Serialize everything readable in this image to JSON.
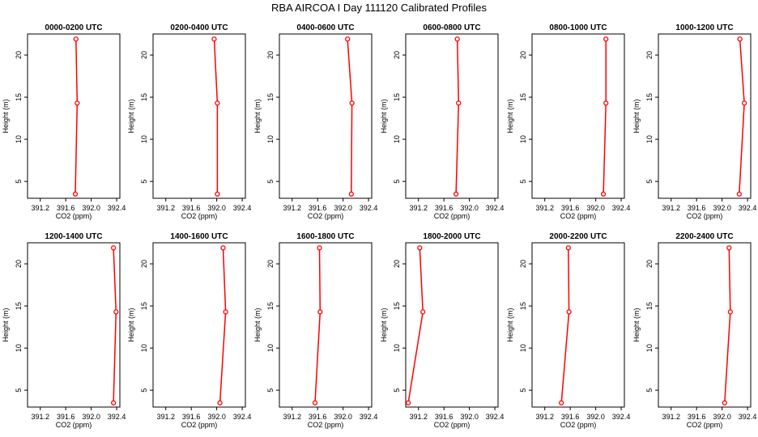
{
  "title": "RBA AIRCOA I  Day 111120  Calibrated Profiles",
  "colors": {
    "line": "#ff0000",
    "axis": "#000000",
    "background": "#ffffff"
  },
  "chart_data": [
    {
      "type": "line",
      "title": "0000-0200 UTC",
      "xlabel": "CO2 (ppm)",
      "ylabel": "Height (m)",
      "xlim": [
        391.0,
        392.45
      ],
      "ylim": [
        3,
        22.5
      ],
      "x_ticks": [
        "391.2",
        "391.6",
        "392.0",
        "392.4"
      ],
      "y_ticks": [
        "5",
        "10",
        "15",
        "20"
      ],
      "grid": false,
      "series": [
        {
          "x": [
            391.75,
            391.78,
            391.76
          ],
          "y": [
            3.5,
            14.3,
            21.9
          ]
        }
      ]
    },
    {
      "type": "line",
      "title": "0200-0400 UTC",
      "xlabel": "CO2 (ppm)",
      "ylabel": "Height (m)",
      "xlim": [
        391.0,
        392.45
      ],
      "ylim": [
        3,
        22.5
      ],
      "x_ticks": [
        "391.2",
        "391.6",
        "392.0",
        "392.4"
      ],
      "y_ticks": [
        "5",
        "10",
        "15",
        "20"
      ],
      "grid": false,
      "series": [
        {
          "x": [
            392.01,
            392.01,
            391.96
          ],
          "y": [
            3.5,
            14.3,
            21.9
          ]
        }
      ]
    },
    {
      "type": "line",
      "title": "0400-0600 UTC",
      "xlabel": "CO2 (ppm)",
      "ylabel": "Height (m)",
      "xlim": [
        391.0,
        392.45
      ],
      "ylim": [
        3,
        22.5
      ],
      "x_ticks": [
        "391.2",
        "391.6",
        "392.0",
        "392.4"
      ],
      "y_ticks": [
        "5",
        "10",
        "15",
        "20"
      ],
      "grid": false,
      "series": [
        {
          "x": [
            392.13,
            392.14,
            392.07
          ],
          "y": [
            3.5,
            14.3,
            21.9
          ]
        }
      ]
    },
    {
      "type": "line",
      "title": "0600-0800 UTC",
      "xlabel": "CO2 (ppm)",
      "ylabel": "Height (m)",
      "xlim": [
        391.0,
        392.45
      ],
      "ylim": [
        3,
        22.5
      ],
      "x_ticks": [
        "391.2",
        "391.6",
        "392.0",
        "392.4"
      ],
      "y_ticks": [
        "5",
        "10",
        "15",
        "20"
      ],
      "grid": false,
      "series": [
        {
          "x": [
            391.79,
            391.83,
            391.81
          ],
          "y": [
            3.5,
            14.3,
            21.9
          ]
        }
      ]
    },
    {
      "type": "line",
      "title": "0800-1000 UTC",
      "xlabel": "CO2 (ppm)",
      "ylabel": "Height (m)",
      "xlim": [
        391.0,
        392.45
      ],
      "ylim": [
        3,
        22.5
      ],
      "x_ticks": [
        "391.2",
        "391.6",
        "392.0",
        "392.4"
      ],
      "y_ticks": [
        "5",
        "10",
        "15",
        "20"
      ],
      "grid": false,
      "series": [
        {
          "x": [
            392.12,
            392.16,
            392.16
          ],
          "y": [
            3.5,
            14.3,
            21.9
          ]
        }
      ]
    },
    {
      "type": "line",
      "title": "1000-1200 UTC",
      "xlabel": "CO2 (ppm)",
      "ylabel": "Height (m)",
      "xlim": [
        391.0,
        392.45
      ],
      "ylim": [
        3,
        22.5
      ],
      "x_ticks": [
        "391.2",
        "391.6",
        "392.0",
        "392.4"
      ],
      "y_ticks": [
        "5",
        "10",
        "15",
        "20"
      ],
      "grid": false,
      "series": [
        {
          "x": [
            392.27,
            392.35,
            392.28
          ],
          "y": [
            3.5,
            14.3,
            21.9
          ]
        }
      ]
    },
    {
      "type": "line",
      "title": "1200-1400 UTC",
      "xlabel": "CO2 (ppm)",
      "ylabel": "Height (m)",
      "xlim": [
        391.0,
        392.45
      ],
      "ylim": [
        3,
        22.5
      ],
      "x_ticks": [
        "391.2",
        "391.6",
        "392.0",
        "392.4"
      ],
      "y_ticks": [
        "5",
        "10",
        "15",
        "20"
      ],
      "grid": false,
      "series": [
        {
          "x": [
            392.35,
            392.39,
            392.35
          ],
          "y": [
            3.5,
            14.3,
            21.9
          ]
        }
      ]
    },
    {
      "type": "line",
      "title": "1400-1600 UTC",
      "xlabel": "CO2 (ppm)",
      "ylabel": "Height (m)",
      "xlim": [
        391.0,
        392.45
      ],
      "ylim": [
        3,
        22.5
      ],
      "x_ticks": [
        "391.2",
        "391.6",
        "392.0",
        "392.4"
      ],
      "y_ticks": [
        "5",
        "10",
        "15",
        "20"
      ],
      "grid": false,
      "series": [
        {
          "x": [
            392.05,
            392.14,
            392.1
          ],
          "y": [
            3.5,
            14.3,
            21.9
          ]
        }
      ]
    },
    {
      "type": "line",
      "title": "1600-1800 UTC",
      "xlabel": "CO2 (ppm)",
      "ylabel": "Height (m)",
      "xlim": [
        391.0,
        392.45
      ],
      "ylim": [
        3,
        22.5
      ],
      "x_ticks": [
        "391.2",
        "391.6",
        "392.0",
        "392.4"
      ],
      "y_ticks": [
        "5",
        "10",
        "15",
        "20"
      ],
      "grid": false,
      "series": [
        {
          "x": [
            391.56,
            391.64,
            391.63
          ],
          "y": [
            3.5,
            14.3,
            21.9
          ]
        }
      ]
    },
    {
      "type": "line",
      "title": "1800-2000 UTC",
      "xlabel": "CO2 (ppm)",
      "ylabel": "Height (m)",
      "xlim": [
        391.0,
        392.45
      ],
      "ylim": [
        3,
        22.5
      ],
      "x_ticks": [
        "391.2",
        "391.6",
        "392.0",
        "392.4"
      ],
      "y_ticks": [
        "5",
        "10",
        "15",
        "20"
      ],
      "grid": false,
      "series": [
        {
          "x": [
            391.04,
            391.27,
            391.22
          ],
          "y": [
            3.5,
            14.3,
            21.9
          ]
        }
      ]
    },
    {
      "type": "line",
      "title": "2000-2200 UTC",
      "xlabel": "CO2 (ppm)",
      "ylabel": "Height (m)",
      "xlim": [
        391.0,
        392.45
      ],
      "ylim": [
        3,
        22.5
      ],
      "x_ticks": [
        "391.2",
        "391.6",
        "392.0",
        "392.4"
      ],
      "y_ticks": [
        "5",
        "10",
        "15",
        "20"
      ],
      "grid": false,
      "series": [
        {
          "x": [
            391.46,
            391.58,
            391.57
          ],
          "y": [
            3.5,
            14.3,
            21.9
          ]
        }
      ]
    },
    {
      "type": "line",
      "title": "2200-2400 UTC",
      "xlabel": "CO2 (ppm)",
      "ylabel": "Height (m)",
      "xlim": [
        391.0,
        392.45
      ],
      "ylim": [
        3,
        22.5
      ],
      "x_ticks": [
        "391.2",
        "391.6",
        "392.0",
        "392.4"
      ],
      "y_ticks": [
        "5",
        "10",
        "15",
        "20"
      ],
      "grid": false,
      "series": [
        {
          "x": [
            392.04,
            392.13,
            392.11
          ],
          "y": [
            3.5,
            14.3,
            21.9
          ]
        }
      ]
    }
  ]
}
